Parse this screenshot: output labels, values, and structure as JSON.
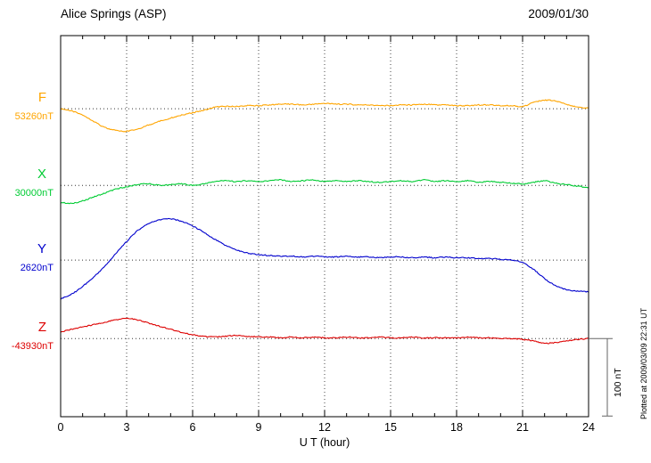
{
  "header": {
    "title": "Alice Springs (ASP)",
    "date": "2009/01/30"
  },
  "chart_data": {
    "type": "line",
    "station": "Alice Springs (ASP)",
    "date": "2009/01/30",
    "xlabel": "U T (hour)",
    "xlim": [
      0,
      24
    ],
    "x_ticks": [
      0,
      3,
      6,
      9,
      12,
      15,
      18,
      21,
      24
    ],
    "grid": "dotted vertical lines every 3 hours; dotted horizontal baseline per component",
    "scale_bar": {
      "label": "100 nT",
      "nT": 100
    },
    "plotted_at": "Plotted at 2009/03/09 22:31 UT",
    "series": [
      {
        "name": "F",
        "value_label": "53260nT",
        "color": "#FFA500",
        "baseline_frac": 0.192,
        "points": [
          [
            0,
            0
          ],
          [
            0.5,
            -3
          ],
          [
            1,
            -8
          ],
          [
            1.5,
            -16
          ],
          [
            2,
            -24
          ],
          [
            2.5,
            -28
          ],
          [
            3,
            -29
          ],
          [
            3.5,
            -26
          ],
          [
            4,
            -21
          ],
          [
            4.5,
            -16
          ],
          [
            5,
            -12
          ],
          [
            5.5,
            -8
          ],
          [
            6,
            -5
          ],
          [
            6.5,
            -2
          ],
          [
            7,
            2
          ],
          [
            7.5,
            3
          ],
          [
            8,
            3
          ],
          [
            8.5,
            4
          ],
          [
            9,
            4
          ],
          [
            9.5,
            5
          ],
          [
            10,
            6
          ],
          [
            10.5,
            6
          ],
          [
            11,
            5
          ],
          [
            11.5,
            6
          ],
          [
            12,
            7
          ],
          [
            12.5,
            6
          ],
          [
            13,
            6
          ],
          [
            13.5,
            5
          ],
          [
            14,
            5
          ],
          [
            14.5,
            4
          ],
          [
            15,
            4
          ],
          [
            15.5,
            5
          ],
          [
            16,
            5
          ],
          [
            16.5,
            6
          ],
          [
            17,
            5
          ],
          [
            17.5,
            5
          ],
          [
            18,
            4
          ],
          [
            18.5,
            4
          ],
          [
            19,
            5
          ],
          [
            19.5,
            5
          ],
          [
            20,
            4
          ],
          [
            20.5,
            4
          ],
          [
            21,
            3
          ],
          [
            21.5,
            8
          ],
          [
            22,
            11
          ],
          [
            22.5,
            10
          ],
          [
            23,
            6
          ],
          [
            23.5,
            2
          ],
          [
            24,
            1
          ]
        ]
      },
      {
        "name": "X",
        "value_label": "30000nT",
        "color": "#00CC33",
        "baseline_frac": 0.393,
        "points": [
          [
            0,
            -22
          ],
          [
            0.5,
            -23
          ],
          [
            1,
            -20
          ],
          [
            1.5,
            -15
          ],
          [
            2,
            -10
          ],
          [
            2.5,
            -5
          ],
          [
            3,
            -2
          ],
          [
            3.5,
            1
          ],
          [
            4,
            2
          ],
          [
            4.5,
            0
          ],
          [
            5,
            1
          ],
          [
            5.5,
            2
          ],
          [
            6,
            0
          ],
          [
            6.5,
            2
          ],
          [
            7,
            5
          ],
          [
            7.5,
            6
          ],
          [
            8,
            5
          ],
          [
            8.5,
            6
          ],
          [
            9,
            5
          ],
          [
            9.5,
            6
          ],
          [
            10,
            7
          ],
          [
            10.5,
            5
          ],
          [
            11,
            6
          ],
          [
            11.5,
            7
          ],
          [
            12,
            5
          ],
          [
            12.5,
            6
          ],
          [
            13,
            5
          ],
          [
            13.5,
            6
          ],
          [
            14,
            5
          ],
          [
            14.5,
            4
          ],
          [
            15,
            5
          ],
          [
            15.5,
            6
          ],
          [
            16,
            5
          ],
          [
            16.5,
            7
          ],
          [
            17,
            5
          ],
          [
            17.5,
            6
          ],
          [
            18,
            5
          ],
          [
            18.5,
            6
          ],
          [
            19,
            4
          ],
          [
            19.5,
            5
          ],
          [
            20,
            4
          ],
          [
            20.5,
            3
          ],
          [
            21,
            2
          ],
          [
            21.5,
            4
          ],
          [
            22,
            6
          ],
          [
            22.5,
            3
          ],
          [
            23,
            1
          ],
          [
            23.5,
            -1
          ],
          [
            24,
            -3
          ]
        ]
      },
      {
        "name": "Y",
        "value_label": "2620nT",
        "color": "#0000CD",
        "baseline_frac": 0.589,
        "points": [
          [
            0,
            -50
          ],
          [
            0.5,
            -44
          ],
          [
            1,
            -34
          ],
          [
            1.5,
            -22
          ],
          [
            2,
            -8
          ],
          [
            2.5,
            8
          ],
          [
            3,
            24
          ],
          [
            3.5,
            38
          ],
          [
            4,
            47
          ],
          [
            4.5,
            52
          ],
          [
            5,
            53
          ],
          [
            5.5,
            50
          ],
          [
            6,
            44
          ],
          [
            6.5,
            36
          ],
          [
            7,
            27
          ],
          [
            7.5,
            19
          ],
          [
            8,
            13
          ],
          [
            8.5,
            9
          ],
          [
            9,
            7
          ],
          [
            9.5,
            6
          ],
          [
            10,
            5
          ],
          [
            10.5,
            5
          ],
          [
            11,
            4
          ],
          [
            11.5,
            5
          ],
          [
            12,
            4
          ],
          [
            12.5,
            4
          ],
          [
            13,
            5
          ],
          [
            13.5,
            4
          ],
          [
            14,
            4
          ],
          [
            14.5,
            3
          ],
          [
            15,
            4
          ],
          [
            15.5,
            4
          ],
          [
            16,
            3
          ],
          [
            16.5,
            4
          ],
          [
            17,
            3
          ],
          [
            17.5,
            4
          ],
          [
            18,
            3
          ],
          [
            18.5,
            3
          ],
          [
            19,
            2
          ],
          [
            19.5,
            2
          ],
          [
            20,
            1
          ],
          [
            20.5,
            0
          ],
          [
            21,
            -3
          ],
          [
            21.5,
            -12
          ],
          [
            22,
            -24
          ],
          [
            22.5,
            -33
          ],
          [
            23,
            -38
          ],
          [
            23.5,
            -40
          ],
          [
            24,
            -41
          ]
        ]
      },
      {
        "name": "Z",
        "value_label": "-43930nT",
        "color": "#DD0000",
        "baseline_frac": 0.795,
        "points": [
          [
            0,
            8
          ],
          [
            0.5,
            12
          ],
          [
            1,
            15
          ],
          [
            1.5,
            18
          ],
          [
            2,
            21
          ],
          [
            2.5,
            24
          ],
          [
            3,
            26
          ],
          [
            3.5,
            24
          ],
          [
            4,
            20
          ],
          [
            4.5,
            16
          ],
          [
            5,
            12
          ],
          [
            5.5,
            8
          ],
          [
            6,
            5
          ],
          [
            6.5,
            3
          ],
          [
            7,
            2
          ],
          [
            7.5,
            3
          ],
          [
            8,
            4
          ],
          [
            8.5,
            3
          ],
          [
            9,
            2
          ],
          [
            9.5,
            2
          ],
          [
            10,
            1
          ],
          [
            10.5,
            2
          ],
          [
            11,
            1
          ],
          [
            11.5,
            2
          ],
          [
            12,
            1
          ],
          [
            12.5,
            1
          ],
          [
            13,
            2
          ],
          [
            13.5,
            1
          ],
          [
            14,
            1
          ],
          [
            14.5,
            2
          ],
          [
            15,
            1
          ],
          [
            15.5,
            1
          ],
          [
            16,
            2
          ],
          [
            16.5,
            1
          ],
          [
            17,
            1
          ],
          [
            17.5,
            1
          ],
          [
            18,
            1
          ],
          [
            18.5,
            2
          ],
          [
            19,
            1
          ],
          [
            19.5,
            1
          ],
          [
            20,
            0
          ],
          [
            20.5,
            0
          ],
          [
            21,
            -1
          ],
          [
            21.5,
            -3
          ],
          [
            22,
            -6
          ],
          [
            22.5,
            -5
          ],
          [
            23,
            -3
          ],
          [
            23.5,
            -1
          ],
          [
            24,
            0
          ]
        ]
      }
    ]
  }
}
